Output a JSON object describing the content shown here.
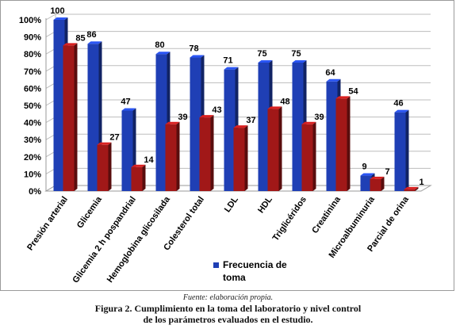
{
  "chart_data": {
    "type": "bar",
    "categories": [
      "Presión arterial",
      "Glicemia",
      "Glicemia 2 h pospandrial",
      "Hemoglobina glicosilada",
      "Colesterol total",
      "LDL",
      "HDL",
      "Triglicéridos",
      "Creatinina",
      "Microalbuminuria",
      "Parcial de orina"
    ],
    "series": [
      {
        "name": "Frecuencia de toma",
        "color": "#1f3fb5",
        "values": [
          100,
          86,
          47,
          80,
          78,
          71,
          75,
          75,
          64,
          9,
          46
        ]
      },
      {
        "name": "",
        "color": "#a11818",
        "values": [
          85,
          27,
          14,
          39,
          43,
          37,
          48,
          39,
          54,
          7,
          1
        ]
      }
    ],
    "yticks": [
      "0%",
      "10%",
      "20%",
      "30%",
      "40%",
      "50%",
      "60%",
      "70%",
      "80%",
      "90%",
      "100%"
    ],
    "ylim": [
      0,
      100
    ],
    "legend_position": "bottom",
    "three_d": true
  },
  "source_text": "Fuente: elaboración propia.",
  "caption_line1": "Figura 2. Cumplimiento en la toma del laboratorio y nivel control",
  "caption_line2": "de los parámetros evaluados en el estudio."
}
